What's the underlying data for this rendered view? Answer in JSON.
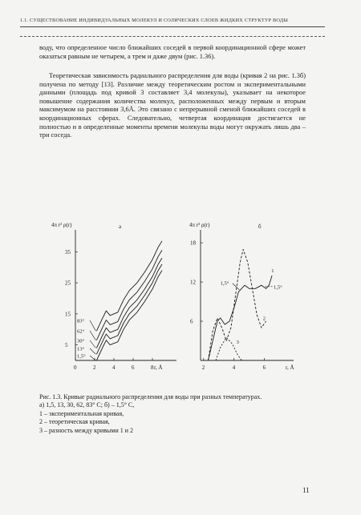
{
  "header": "1.1. СУЩЕСТВОВАНИЕ ИНДИВИДУАЛЬНЫХ МОЛЕКУЛ И СОЛИЧЕСКИХ СЛОЕВ ЖИДКИХ СТРУКТУР ВОДЫ",
  "paragraph1": "воду, что определенное число ближайших соседей в первой координационной сфере может оказаться равным не четырем, а трем и даже двум (рис. 1.36).",
  "paragraph2": "Теоретическая зависимость радиального распределения для воды (кривая 2 на рис. 1.3б) получена по методу [13]. Различие между теоретическим ростом и экспериментальными данными (площадь под кривой 3 составляет 3,4 молекулы), указывает на некоторое повышение содержания количества молекул, расположенных между первым и вторым максимумом на расстоянии 3,6Å. Это связано с непрерывной сменой ближайших соседей в координационных сферах. Следовательно, четвертая координация достигается не полностью и в определенные моменты времени молекулы воды могут окружать лишь два – три соседа.",
  "chart_data": [
    {
      "type": "line",
      "panel": "а",
      "ylabel": "4π r² ρ(r)",
      "xlabel": "r, Å",
      "xlim": [
        0,
        10
      ],
      "ylim": [
        0,
        40
      ],
      "xticks": [
        "0",
        "2",
        "4",
        "6",
        "8"
      ],
      "yticks": [
        "5",
        "15",
        "25",
        "35"
      ],
      "series": [
        {
          "name": "1,5°",
          "x": [
            2.2,
            2.8,
            3.2,
            3.6,
            4.4,
            5.0,
            5.6,
            6.4,
            7.2,
            8.0,
            8.6,
            9.0
          ],
          "values": [
            0,
            4,
            6.5,
            5,
            6,
            10,
            13,
            15.5,
            19,
            23,
            27,
            29
          ]
        },
        {
          "name": "13°",
          "x": [
            2.2,
            2.8,
            3.2,
            3.6,
            4.4,
            5.0,
            5.6,
            6.4,
            7.2,
            8.0,
            8.6,
            9.0
          ],
          "values": [
            2,
            6,
            8.5,
            7,
            8,
            12,
            15,
            17.5,
            21,
            25,
            29,
            31
          ]
        },
        {
          "name": "30°",
          "x": [
            2.2,
            2.8,
            3.2,
            3.6,
            4.4,
            5.0,
            5.6,
            6.4,
            7.2,
            8.0,
            8.6,
            9.0
          ],
          "values": [
            4,
            8,
            10.5,
            9,
            10,
            14,
            17,
            19.5,
            23,
            27,
            31,
            33
          ]
        },
        {
          "name": "62°",
          "x": [
            2.2,
            2.8,
            3.2,
            3.6,
            4.4,
            5.0,
            5.6,
            6.4,
            7.2,
            8.0,
            8.6,
            9.0
          ],
          "values": [
            6.5,
            10.5,
            13,
            11.5,
            12.5,
            16.5,
            19.5,
            22,
            25.5,
            29.5,
            33.5,
            35.5
          ]
        },
        {
          "name": "83°",
          "x": [
            2.2,
            2.8,
            3.2,
            3.6,
            4.4,
            5.0,
            5.6,
            6.4,
            7.2,
            8.0,
            8.6,
            9.0
          ],
          "values": [
            9.5,
            13.5,
            16,
            14.5,
            15.5,
            19.5,
            22.5,
            25,
            28.5,
            32.5,
            36.5,
            38.5
          ]
        }
      ]
    },
    {
      "type": "line",
      "panel": "б",
      "ylabel": "4π r² ρ(r)",
      "xlabel": "r, Å",
      "xlim": [
        1.8,
        7.6
      ],
      "ylim": [
        0,
        19
      ],
      "xticks": [
        "2",
        "4",
        "6"
      ],
      "yticks": [
        "6",
        "12",
        "18"
      ],
      "annotations": [
        "1,5°",
        "1,5°",
        "1",
        "2",
        "3"
      ],
      "series": [
        {
          "name": "1",
          "x": [
            2.3,
            2.6,
            2.9,
            3.1,
            3.4,
            3.7,
            4.0,
            4.3,
            4.7,
            5.0,
            5.4,
            5.8,
            6.1,
            6.3,
            6.5
          ],
          "values": [
            0,
            3,
            6,
            6.5,
            5.5,
            6,
            8,
            10.5,
            11.5,
            11,
            11,
            11.5,
            11,
            11.5,
            13
          ]
        },
        {
          "name": "2",
          "x": [
            2.3,
            2.6,
            2.9,
            3.2,
            3.5,
            3.8,
            4.1,
            4.4,
            4.6,
            4.9,
            5.2,
            5.5,
            5.8,
            6.1
          ],
          "values": [
            0,
            4.5,
            6.5,
            5,
            3,
            5,
            10,
            15,
            17,
            15,
            11,
            7,
            5,
            6
          ]
        },
        {
          "name": "3",
          "x": [
            2.8,
            3.1,
            3.5,
            3.9,
            4.2,
            4.5
          ],
          "values": [
            0,
            2,
            3.5,
            2.5,
            1,
            0
          ]
        }
      ]
    }
  ],
  "caption": {
    "title": "Рис. 1.3. Кривые радиального распределения для воды при разных температурах.",
    "line_a": "а) 1,5, 13, 30, 62, 83° С; б) – 1,5° С,",
    "item1": "1 – экспериментальная кривая,",
    "item2": "2 – теоретическая кривая,",
    "item3": "3 – разность между кривыми 1 и 2"
  },
  "page_number": "11"
}
